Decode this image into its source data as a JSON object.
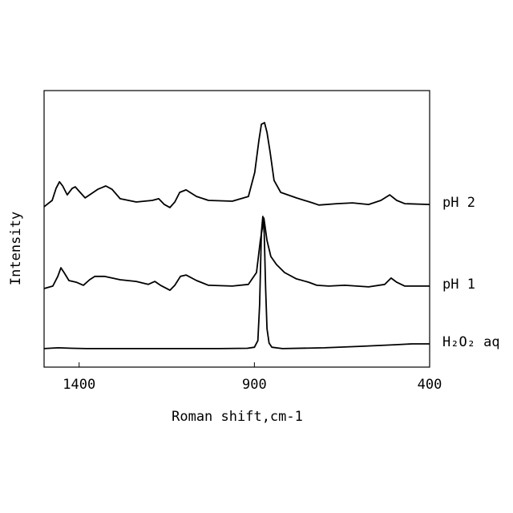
{
  "chart_data": {
    "type": "line",
    "xlabel": "Roman shift,cm-1",
    "ylabel": "Intensity",
    "xlim": [
      1500,
      400
    ],
    "xticks": [
      1400,
      900,
      400
    ],
    "ylim": [
      0,
      100
    ],
    "grid": false,
    "series": [
      {
        "name": "pH 2",
        "color": "#000000",
        "x": [
          1500,
          1477,
          1466,
          1456,
          1447,
          1434,
          1420,
          1411,
          1397,
          1383,
          1363,
          1347,
          1324,
          1306,
          1283,
          1237,
          1191,
          1173,
          1157,
          1141,
          1127,
          1113,
          1095,
          1065,
          1031,
          963,
          917,
          899,
          887,
          880,
          871,
          864,
          855,
          844,
          825,
          780,
          734,
          716,
          665,
          620,
          574,
          539,
          514,
          494,
          471,
          400
        ],
        "values": [
          58.0,
          60.3,
          64.6,
          67.0,
          65.5,
          62.3,
          64.6,
          65.2,
          63.2,
          61.2,
          62.9,
          64.3,
          65.5,
          64.3,
          60.9,
          59.7,
          60.3,
          60.9,
          58.8,
          57.7,
          59.7,
          63.2,
          64.1,
          61.7,
          60.3,
          60.0,
          61.7,
          70.4,
          82.0,
          87.8,
          88.4,
          84.9,
          77.7,
          67.5,
          63.2,
          61.2,
          59.4,
          58.6,
          59.1,
          59.4,
          58.8,
          60.3,
          62.3,
          60.3,
          59.1,
          58.8
        ]
      },
      {
        "name": "pH 1",
        "color": "#000000",
        "x": [
          1500,
          1475,
          1461,
          1452,
          1443,
          1429,
          1408,
          1388,
          1370,
          1355,
          1328,
          1283,
          1237,
          1203,
          1184,
          1168,
          1141,
          1127,
          1111,
          1095,
          1065,
          1031,
          963,
          917,
          894,
          883,
          873,
          864,
          853,
          837,
          814,
          780,
          745,
          722,
          688,
          642,
          574,
          528,
          510,
          494,
          471,
          400
        ],
        "values": [
          28.4,
          29.3,
          32.8,
          35.9,
          34.2,
          31.3,
          30.7,
          29.6,
          31.6,
          32.8,
          32.8,
          31.6,
          31.0,
          29.9,
          31.0,
          29.6,
          27.8,
          29.6,
          32.8,
          33.3,
          31.3,
          29.6,
          29.3,
          29.9,
          34.2,
          45.8,
          53.9,
          45.8,
          40.0,
          37.1,
          34.2,
          31.9,
          30.7,
          29.6,
          29.3,
          29.6,
          29.0,
          29.9,
          32.2,
          30.7,
          29.3,
          29.3
        ]
      },
      {
        "name": "H₂O₂ aq",
        "color": "#000000",
        "x": [
          1500,
          1460,
          1420,
          1380,
          1200,
          1000,
          920,
          900,
          890,
          885,
          880,
          876,
          872,
          868,
          864,
          858,
          850,
          820,
          700,
          600,
          500,
          450,
          400
        ],
        "values": [
          6.7,
          7.0,
          6.8,
          6.7,
          6.7,
          6.7,
          6.8,
          7.2,
          9.6,
          22.6,
          48.7,
          54.5,
          48.7,
          28.4,
          13.9,
          8.7,
          7.2,
          6.7,
          7.0,
          7.5,
          8.1,
          8.4,
          8.4
        ]
      }
    ]
  }
}
